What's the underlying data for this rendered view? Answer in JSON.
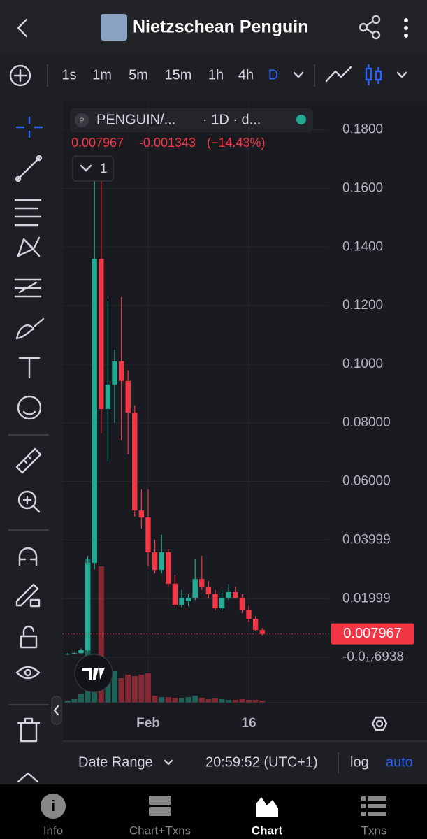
{
  "header": {
    "title": "Nietzschean Penguin"
  },
  "intervals": [
    "1s",
    "1m",
    "5m",
    "15m",
    "1h",
    "4h",
    "D"
  ],
  "chart_data": {
    "type": "candlestick",
    "symbol": "PENGUIN/...",
    "interval": "· 1D · d...",
    "legend_values": [
      "0.007967",
      "-0.001343",
      "(−14.43%)"
    ],
    "indicator_count": "1",
    "last_price_label": "0.007967",
    "categories": [
      null,
      null,
      null,
      null,
      null,
      null,
      null,
      null,
      null,
      null,
      null,
      null,
      "Feb",
      null,
      null,
      null,
      null,
      null,
      null,
      null,
      null,
      null,
      null,
      null,
      null,
      null,
      null,
      "16",
      null,
      null
    ],
    "open": [
      0.001,
      0.0012,
      0.0014,
      0.0024,
      0.0322,
      0.136,
      0.0847,
      0.0931,
      0.101,
      0.0943,
      0.0835,
      0.0501,
      0.0477,
      0.0358,
      0.0298,
      0.0358,
      0.0251,
      0.0179,
      0.0191,
      0.0203,
      0.0267,
      0.0239,
      0.0215,
      0.0167,
      0.0203,
      0.0222,
      0.0203,
      0.0162,
      0.0131,
      0.0093
    ],
    "high": [
      0.0014,
      0.0016,
      0.003,
      0.0346,
      0.1671,
      0.1635,
      0.1217,
      0.105,
      0.1229,
      0.098,
      0.086,
      0.0573,
      0.0573,
      0.04,
      0.0418,
      0.037,
      0.028,
      0.023,
      0.0215,
      0.0334,
      0.0346,
      0.026,
      0.023,
      0.023,
      0.025,
      0.024,
      0.0215,
      0.0175,
      0.014,
      0.01
    ],
    "low": [
      0.0008,
      0.001,
      0.0012,
      0.002,
      0.03,
      0.0764,
      0.0668,
      0.08,
      0.074,
      0.0692,
      0.048,
      0.044,
      0.031,
      0.0286,
      0.0286,
      0.024,
      0.017,
      0.017,
      0.0175,
      0.0195,
      0.023,
      0.02,
      0.016,
      0.016,
      0.0195,
      0.02,
      0.015,
      0.012,
      0.009,
      0.0075
    ],
    "close": [
      0.0012,
      0.0014,
      0.0024,
      0.0322,
      0.136,
      0.0847,
      0.0931,
      0.101,
      0.0943,
      0.0835,
      0.0501,
      0.0477,
      0.0358,
      0.0298,
      0.0358,
      0.0251,
      0.0179,
      0.0203,
      0.0203,
      0.0267,
      0.0239,
      0.0215,
      0.0167,
      0.0203,
      0.0222,
      0.0203,
      0.0162,
      0.0131,
      0.0093,
      0.007967
    ],
    "volume": [
      3,
      5,
      12,
      205,
      70,
      195,
      40,
      45,
      35,
      40,
      38,
      40,
      42,
      10,
      8,
      8,
      7,
      6,
      8,
      10,
      7,
      5,
      6,
      5,
      4,
      4,
      5,
      4,
      4,
      3
    ],
    "up_color": "#22ab94",
    "down_color": "#f23645",
    "ylim": [
      -0.0155,
      0.1897
    ],
    "yticks": [
      {
        "value": -6.938e-18,
        "label": "-0.0₁₇6938"
      },
      0.01999,
      0.03999,
      {
        "value": 0.06,
        "label": "0.06000"
      },
      {
        "value": 0.08,
        "label": "0.08000"
      },
      {
        "value": 0.1,
        "label": "0.1000"
      },
      {
        "value": 0.12,
        "label": "0.1200"
      },
      {
        "value": 0.14,
        "label": "0.1400"
      },
      {
        "value": 0.16,
        "label": "0.1600"
      },
      {
        "value": 0.18,
        "label": "0.1800"
      }
    ],
    "grid": true,
    "log_scale": false
  },
  "footer": {
    "date_range": "Date Range",
    "clock": "20:59:52 (UTC+1)",
    "log": "log",
    "auto": "auto"
  },
  "nav": [
    "Info",
    "Chart+Txns",
    "Chart",
    "Txns"
  ]
}
